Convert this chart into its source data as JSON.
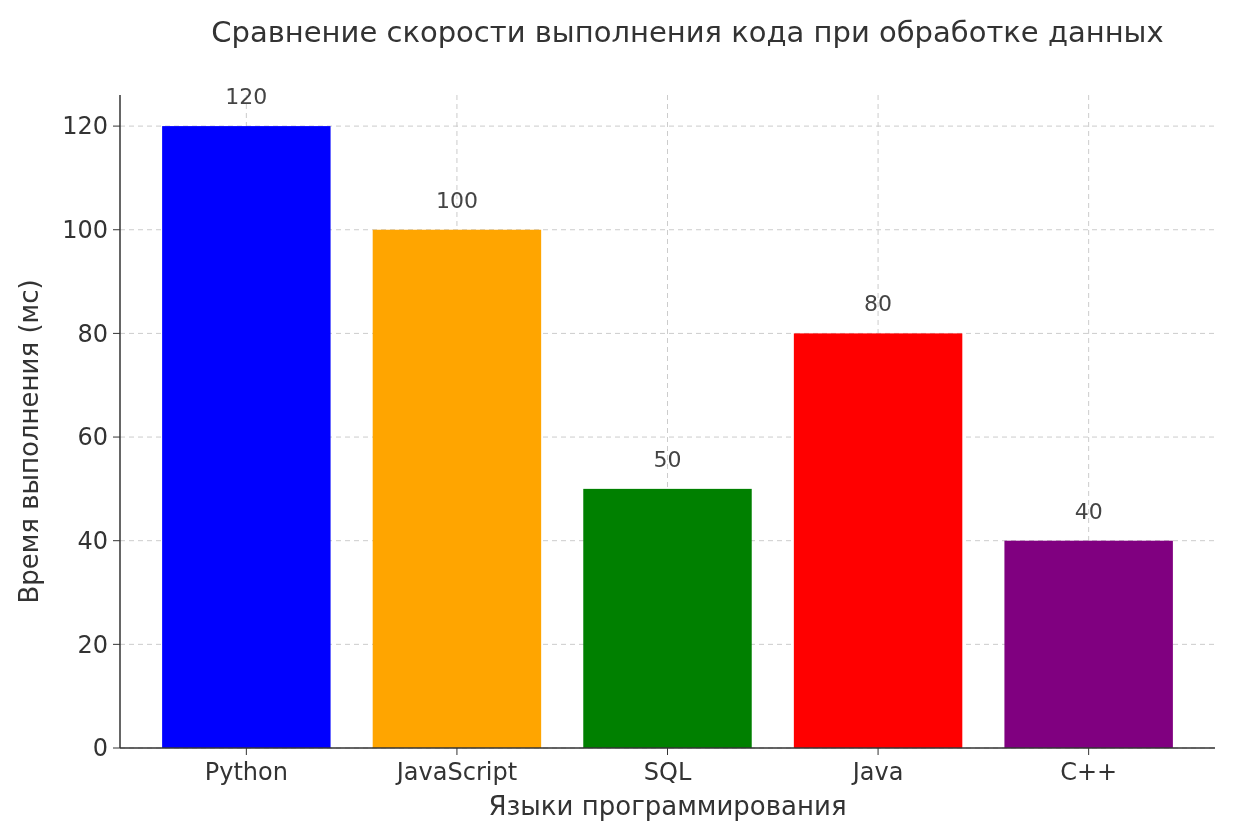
{
  "chart_data": {
    "type": "bar",
    "title": "Сравнение скорости выполнения кода при обработке данных",
    "xlabel": "Языки программирования",
    "ylabel": "Время выполнения (мс)",
    "categories": [
      "Python",
      "JavaScript",
      "SQL",
      "Java",
      "C++"
    ],
    "values": [
      120,
      100,
      50,
      80,
      40
    ],
    "colors": [
      "#0000ff",
      "#ffa500",
      "#008000",
      "#ff0000",
      "#800080"
    ],
    "ylim": [
      0,
      126
    ],
    "yticks": [
      0,
      20,
      40,
      60,
      80,
      100,
      120
    ],
    "grid": true,
    "data_labels": true
  }
}
